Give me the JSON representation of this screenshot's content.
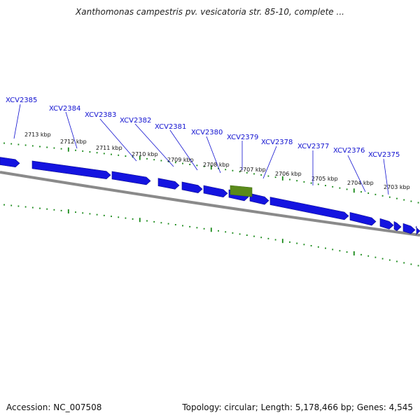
{
  "title": "Xanthomonas campestris pv. vesicatoria str. 85-10, complete ...",
  "accession_text": "Accession: NC_007508",
  "summary_text": "Topology: circular; Length: 5,178,466 bp; Genes: 4,545",
  "colors": {
    "gene": "#1414e0",
    "gene_highlight": "#5a8a1a",
    "ruler": "#1a8a1a",
    "backbone": "#808080",
    "label": "#1010d0"
  },
  "scale_labels": [
    "2713 kbp",
    "2712 kbp",
    "2711 kbp",
    "2710 kbp",
    "2709 kbp",
    "2708 kbp",
    "2707 kbp",
    "2706 kbp",
    "2705 kbp",
    "2704 kbp",
    "2703 kbp"
  ],
  "genes": [
    {
      "label": "XCV2385"
    },
    {
      "label": "XCV2384"
    },
    {
      "label": "XCV2383"
    },
    {
      "label": "XCV2382"
    },
    {
      "label": "XCV2381"
    },
    {
      "label": "XCV2380"
    },
    {
      "label": "XCV2379"
    },
    {
      "label": "XCV2378"
    },
    {
      "label": "XCV2377"
    },
    {
      "label": "XCV2376"
    },
    {
      "label": "XCV2375"
    }
  ]
}
